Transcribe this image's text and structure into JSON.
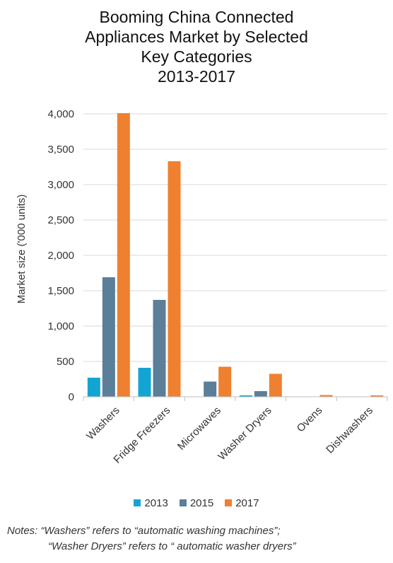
{
  "chart_data": {
    "type": "bar",
    "title_lines": [
      "Booming China Connected",
      "Appliances Market by Selected",
      "Key Categories",
      "2013-2017"
    ],
    "ylabel": "Market size ('000 units)",
    "xlabel": "",
    "ylim": [
      0,
      4000
    ],
    "yticks": [
      0,
      500,
      1000,
      1500,
      2000,
      2500,
      3000,
      3500,
      4000
    ],
    "ytick_labels": [
      "0",
      "500",
      "1,000",
      "1,500",
      "2,000",
      "2,500",
      "3,000",
      "3,500",
      "4,000"
    ],
    "categories": [
      "Washers",
      "Fridge Freezers",
      "Microwaves",
      "Washer Dryers",
      "Ovens",
      "Dishwashers"
    ],
    "series": [
      {
        "name": "2013",
        "color": "#12a5d4",
        "values": [
          270,
          410,
          0,
          20,
          0,
          0
        ]
      },
      {
        "name": "2015",
        "color": "#5b7e99",
        "values": [
          1690,
          1370,
          215,
          80,
          5,
          5
        ]
      },
      {
        "name": "2017",
        "color": "#ef8030",
        "values": [
          4010,
          3330,
          425,
          325,
          25,
          20
        ]
      }
    ],
    "grid": true,
    "legend_position": "bottom"
  },
  "notes": {
    "line1": "Notes: “Washers” refers to “automatic washing machines”;",
    "line2": "“Washer Dryers” refers to “ automatic washer dryers”"
  }
}
